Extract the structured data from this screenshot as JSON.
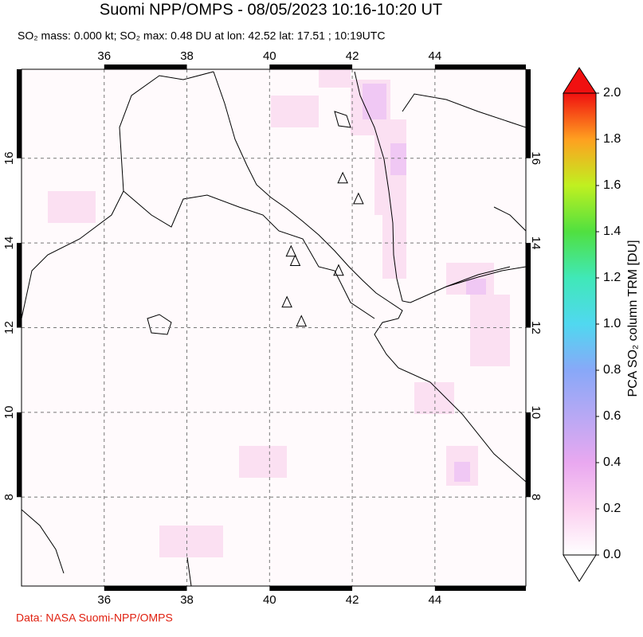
{
  "header": {
    "title": "Suomi NPP/OMPS - 08/05/2023 10:16-10:20 UT",
    "subtitle": "SO₂ mass: 0.000 kt; SO₂ max: 0.48 DU at lon: 42.52 lat: 17.51 ; 10:19UTC"
  },
  "map": {
    "lon_range": [
      34,
      46.2
    ],
    "lat_range": [
      5.9,
      18.1
    ],
    "lon_ticks": [
      36,
      38,
      40,
      42,
      44
    ],
    "lat_ticks": [
      8,
      10,
      12,
      14,
      16
    ],
    "volcanoes": [
      {
        "lon": 41.77,
        "lat": 15.51
      },
      {
        "lon": 42.15,
        "lat": 15.02
      },
      {
        "lon": 40.52,
        "lat": 13.78
      },
      {
        "lon": 40.62,
        "lat": 13.56
      },
      {
        "lon": 41.67,
        "lat": 13.33
      },
      {
        "lon": 40.42,
        "lat": 12.58
      },
      {
        "lon": 40.77,
        "lat": 12.13
      }
    ]
  },
  "colorbar": {
    "label": "PCA SO₂ column TRM [DU]",
    "range": [
      0,
      2
    ],
    "ticks": [
      {
        "value": 0,
        "label": "0.0"
      },
      {
        "value": 0.2,
        "label": "0.2"
      },
      {
        "value": 0.4,
        "label": "0.4"
      },
      {
        "value": 0.6,
        "label": "0.6"
      },
      {
        "value": 0.8,
        "label": "0.8"
      },
      {
        "value": 1,
        "label": "1.0"
      },
      {
        "value": 1.2,
        "label": "1.2"
      },
      {
        "value": 1.4,
        "label": "1.4"
      },
      {
        "value": 1.6,
        "label": "1.6"
      },
      {
        "value": 1.8,
        "label": "1.8"
      },
      {
        "value": 2,
        "label": "2.0"
      }
    ]
  },
  "footer": {
    "credit": "Data: NASA Suomi-NPP/OMPS"
  }
}
